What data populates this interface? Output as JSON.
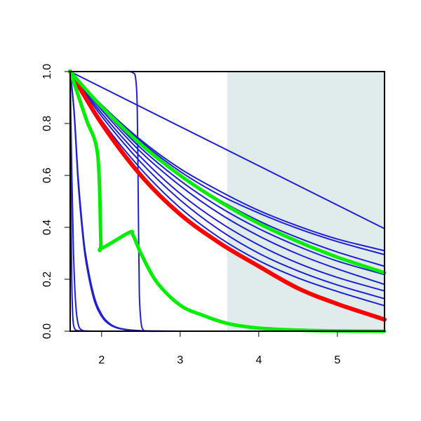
{
  "chart_data": {
    "type": "line",
    "title": "",
    "xlabel": "",
    "ylabel": "",
    "xlim": [
      1.6,
      5.6
    ],
    "ylim": [
      0,
      1
    ],
    "x_ticks": [
      2,
      3,
      4,
      5
    ],
    "y_ticks": [
      0.0,
      0.2,
      0.4,
      0.6,
      0.8,
      1.0
    ],
    "x_tick_labels": [
      "2",
      "3",
      "4",
      "5"
    ],
    "y_tick_labels": [
      "0.0",
      "0.2",
      "0.4",
      "0.6",
      "0.8",
      "1.0"
    ],
    "shaded_region": {
      "x": [
        3.6,
        5.6
      ],
      "y": [
        0,
        1
      ],
      "color": "#e0ecec"
    },
    "grid": false,
    "legend": "none",
    "series": [
      {
        "color": "#1f1fd6",
        "width": 2,
        "x": [
          1.6,
          5.6
        ],
        "y": [
          1.0,
          0.395
        ]
      },
      {
        "color": "#1f1fd6",
        "width": 2,
        "x": [
          1.6,
          2.0,
          2.5,
          3.0,
          3.5,
          4.0,
          4.5,
          5.0,
          5.6
        ],
        "y": [
          1.0,
          0.872,
          0.736,
          0.626,
          0.54,
          0.465,
          0.405,
          0.355,
          0.31
        ]
      },
      {
        "color": "#1f1fd6",
        "width": 2,
        "x": [
          1.6,
          2.0,
          2.5,
          3.0,
          3.5,
          4.0,
          4.5,
          5.0,
          5.6
        ],
        "y": [
          1.0,
          0.87,
          0.73,
          0.615,
          0.525,
          0.455,
          0.395,
          0.345,
          0.295
        ]
      },
      {
        "color": "#1f1fd6",
        "width": 2,
        "x": [
          1.6,
          2.0,
          2.5,
          3.0,
          3.5,
          4.0,
          4.5,
          5.0,
          5.6
        ],
        "y": [
          1.0,
          0.865,
          0.72,
          0.6,
          0.505,
          0.425,
          0.36,
          0.305,
          0.25
        ]
      },
      {
        "color": "#1f1fd6",
        "width": 2,
        "x": [
          1.6,
          2.0,
          2.5,
          3.0,
          3.5,
          4.0,
          4.5,
          5.0,
          5.6
        ],
        "y": [
          1.0,
          0.86,
          0.705,
          0.58,
          0.478,
          0.395,
          0.327,
          0.27,
          0.218
        ]
      },
      {
        "color": "#1f1fd6",
        "width": 2,
        "x": [
          1.6,
          2.0,
          2.5,
          3.0,
          3.5,
          4.0,
          4.5,
          5.0,
          5.6
        ],
        "y": [
          1.0,
          0.852,
          0.69,
          0.56,
          0.453,
          0.367,
          0.297,
          0.24,
          0.18
        ]
      },
      {
        "color": "#1f1fd6",
        "width": 2,
        "x": [
          1.6,
          2.0,
          2.5,
          3.0,
          3.5,
          4.0,
          4.5,
          5.0,
          5.6
        ],
        "y": [
          1.0,
          0.84,
          0.67,
          0.53,
          0.42,
          0.332,
          0.262,
          0.207,
          0.155
        ]
      },
      {
        "color": "#1f1fd6",
        "width": 2,
        "x": [
          1.6,
          2.0,
          2.5,
          3.0,
          3.5,
          4.0,
          4.5,
          5.0,
          5.6
        ],
        "y": [
          1.0,
          0.828,
          0.65,
          0.505,
          0.39,
          0.3,
          0.232,
          0.178,
          0.125
        ]
      },
      {
        "color": "#1f1fd6",
        "width": 2,
        "x": [
          1.6,
          2.0,
          2.5,
          3.0,
          3.5,
          4.0,
          4.5,
          5.0,
          5.6
        ],
        "y": [
          1.0,
          0.812,
          0.625,
          0.475,
          0.36,
          0.272,
          0.205,
          0.153,
          0.098
        ]
      },
      {
        "color": "#1f1fd6",
        "width": 2,
        "x": [
          1.6,
          1.65,
          1.7,
          1.75,
          1.8,
          1.9,
          2.0,
          2.1,
          2.2,
          2.35,
          2.5,
          2.7,
          3.0
        ],
        "y": [
          1.0,
          0.85,
          0.6,
          0.42,
          0.29,
          0.14,
          0.065,
          0.03,
          0.014,
          0.005,
          0.002,
          0.0005,
          0.0
        ]
      },
      {
        "color": "#1f1fd6",
        "width": 2,
        "x": [
          1.6,
          1.65,
          1.7,
          1.75,
          1.8,
          1.9,
          2.0,
          2.1,
          2.2,
          2.35,
          2.5,
          2.7,
          3.0
        ],
        "y": [
          1.0,
          0.84,
          0.58,
          0.4,
          0.27,
          0.125,
          0.057,
          0.026,
          0.012,
          0.004,
          0.0015,
          0.0004,
          0.0
        ]
      },
      {
        "color": "#1f1fd6",
        "width": 2,
        "x": [
          1.6,
          1.61,
          1.62,
          1.63,
          1.64,
          1.66,
          1.7,
          1.8,
          2.0,
          3.0,
          5.6
        ],
        "y": [
          1.0,
          0.5,
          0.2,
          0.08,
          0.03,
          0.008,
          0.002,
          0.0,
          0.0,
          0.0,
          0.0
        ]
      },
      {
        "color": "#1f1fd6",
        "width": 2,
        "x": [
          1.6,
          1.62,
          1.64,
          1.66,
          1.68,
          1.7,
          1.72,
          1.75,
          1.8,
          2.0,
          3.0,
          5.6
        ],
        "y": [
          1.0,
          0.62,
          0.33,
          0.16,
          0.07,
          0.03,
          0.012,
          0.004,
          0.001,
          0.0,
          0.0,
          0.0
        ]
      },
      {
        "color": "#1f1fd6",
        "width": 2,
        "x": [
          1.6,
          2.2,
          2.35,
          2.4,
          2.43,
          2.45,
          2.46,
          2.47,
          2.48,
          2.5,
          2.53,
          2.6,
          3.0,
          5.6
        ],
        "y": [
          1.0,
          1.0,
          1.0,
          0.995,
          0.98,
          0.9,
          0.7,
          0.4,
          0.15,
          0.04,
          0.005,
          0.0,
          0.0,
          0.0
        ]
      },
      {
        "color": "#ff0000",
        "width": 6,
        "x": [
          1.6,
          2.0,
          2.5,
          3.0,
          3.5,
          4.0,
          4.5,
          5.0,
          5.6
        ],
        "y": [
          1.0,
          0.8,
          0.6,
          0.45,
          0.34,
          0.25,
          0.165,
          0.105,
          0.045
        ]
      },
      {
        "color": "#00ee00",
        "width": 5,
        "x": [
          1.6,
          2.0,
          2.5,
          3.0,
          3.5,
          4.0,
          4.5,
          5.0,
          5.6
        ],
        "y": [
          1.0,
          0.865,
          0.72,
          0.6,
          0.5,
          0.415,
          0.345,
          0.285,
          0.225
        ]
      },
      {
        "color": "#00ee00",
        "width": 5,
        "x": [
          1.6,
          1.8,
          1.95,
          1.99,
          2.0,
          2.35,
          2.4,
          2.5,
          2.7,
          3.0,
          3.3,
          3.6,
          4.0,
          4.5,
          5.0,
          5.6
        ],
        "y": [
          1.0,
          0.82,
          0.68,
          0.35,
          0.32,
          0.38,
          0.37,
          0.3,
          0.19,
          0.1,
          0.06,
          0.03,
          0.012,
          0.004,
          0.001,
          0.0
        ]
      }
    ]
  }
}
